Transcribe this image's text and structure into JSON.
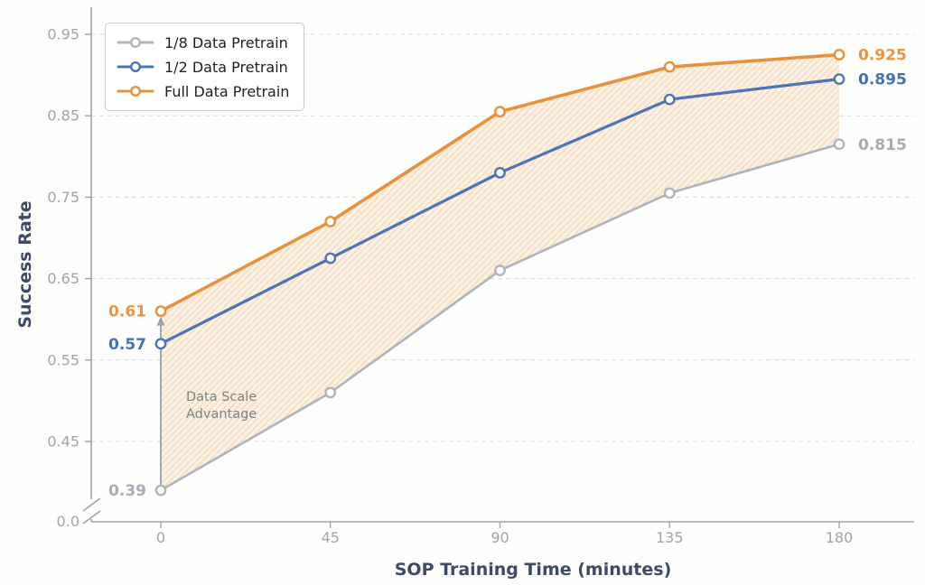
{
  "chart_data": {
    "type": "line",
    "xlabel": "SOP Training Time (minutes)",
    "ylabel": "Success Rate",
    "x": [
      0,
      45,
      90,
      135,
      180
    ],
    "x_tick_labels": [
      "0",
      "45",
      "90",
      "135",
      "180"
    ],
    "y_tick_values": [
      0.45,
      0.55,
      0.65,
      0.75,
      0.85,
      0.95
    ],
    "y_tick_labels": [
      "0.45",
      "0.55",
      "0.65",
      "0.75",
      "0.85",
      "0.95"
    ],
    "y_break_label": "0.0",
    "ylim": [
      0.37,
      0.97
    ],
    "grid": "dashed-horizontal",
    "legend_position": "upper-left",
    "series": [
      {
        "name": "1/8 Data Pretrain",
        "color": "#afb4bc",
        "label_color": "#a6abb4",
        "line_width": 2.6,
        "values": [
          0.39,
          0.51,
          0.66,
          0.755,
          0.815
        ],
        "first_label": "0.39",
        "last_label": "0.815"
      },
      {
        "name": "1/2 Data Pretrain",
        "color": "#4c74b9",
        "label_color": "#4470b8",
        "line_width": 3.2,
        "values": [
          0.57,
          0.675,
          0.78,
          0.87,
          0.895
        ],
        "first_label": "0.57",
        "last_label": "0.895"
      },
      {
        "name": "Full Data Pretrain",
        "color": "#e8913c",
        "label_color": "#ec9440",
        "line_width": 3.6,
        "values": [
          0.61,
          0.72,
          0.855,
          0.91,
          0.925
        ],
        "first_label": "0.61",
        "last_label": "0.925"
      }
    ],
    "shaded_band": {
      "between": [
        "1/8 Data Pretrain",
        "Full Data Pretrain"
      ],
      "style": "diagonal-hatch",
      "fill": "#fbeedf",
      "hatch_color": "#f1d5b5"
    },
    "annotation": {
      "lines": [
        "Data Scale",
        "Advantage"
      ],
      "color": "#7e8285",
      "arrow_x": 0,
      "arrow_from_value": 0.39,
      "arrow_to_value": 0.61,
      "arrow_color": "#9ca2aa"
    }
  },
  "colors": {
    "background": "#fefefd",
    "axis_line": "#9fa4a9",
    "grid_line": "#dcdcdc",
    "tick_label": "#9ea3ac",
    "axis_title": "#3e4a68",
    "legend_text": "#1f1f1f",
    "legend_border": "#c9c9c9"
  }
}
